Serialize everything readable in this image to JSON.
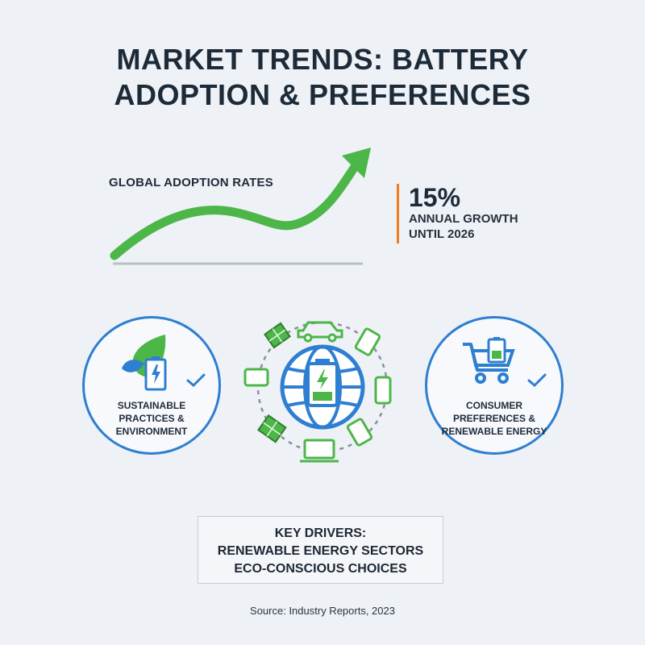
{
  "title": {
    "line1": "MARKET TRENDS: BATTERY",
    "line2": "ADOPTION & PREFERENCES"
  },
  "adoption": {
    "label": "GLOBAL ADOPTION RATES",
    "trend_color": "#4cb648",
    "baseline_color": "#b9bec6"
  },
  "stat": {
    "value": "15%",
    "caption": "ANNUAL GROWTH\nUNTIL 2026",
    "accent": "#f47b20"
  },
  "badges": {
    "left": {
      "text": "SUSTAINABLE\nPRACTICES &\nENVIRONMENT",
      "icons": [
        "leaf-icon",
        "battery-icon",
        "check-icon"
      ]
    },
    "right": {
      "text": "CONSUMER\nPREFERENCES &\nRENEWABLE ENERGY",
      "icons": [
        "shopping-cart-icon",
        "battery-icon",
        "check-icon"
      ]
    },
    "ring_color": "#2e7fd1"
  },
  "hub": {
    "center": "globe-battery-icon",
    "devices": [
      "car-icon",
      "tablet-icon",
      "phone-icon",
      "tablet-icon",
      "laptop-icon",
      "solar-panel-icon",
      "tablet-icon",
      "solar-panel-icon"
    ]
  },
  "drivers": {
    "heading": "KEY DRIVERS:",
    "items": [
      "RENEWABLE ENERGY SECTORS",
      "ECO-CONSCIOUS CHOICES"
    ]
  },
  "source": "Source: Industry Reports, 2023"
}
